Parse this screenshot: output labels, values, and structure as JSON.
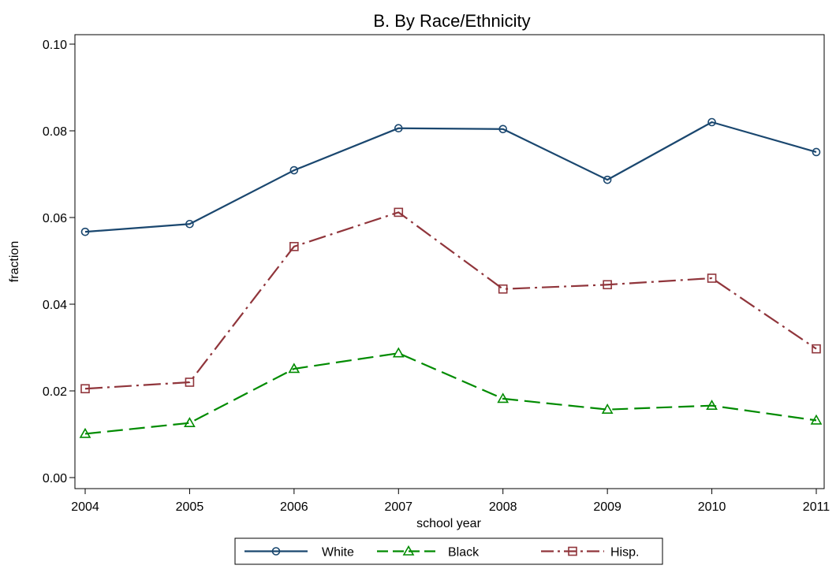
{
  "chart_data": {
    "type": "line",
    "title": "B. By Race/Ethnicity",
    "xlabel": "school year",
    "ylabel": "fraction",
    "x": [
      2004,
      2005,
      2006,
      2007,
      2008,
      2009,
      2010,
      2011
    ],
    "xticks": [
      "2004",
      "2005",
      "2006",
      "2007",
      "2008",
      "2009",
      "2010",
      "2011"
    ],
    "ylim": [
      0,
      0.1
    ],
    "yticks": [
      "0.00",
      "0.02",
      "0.04",
      "0.06",
      "0.08",
      "0.10"
    ],
    "ytick_values": [
      0,
      0.02,
      0.04,
      0.06,
      0.08,
      0.1
    ],
    "grid": false,
    "legend_position": "bottom",
    "series": [
      {
        "name": "White",
        "color": "#1a476f",
        "marker": "circle",
        "dash": "solid",
        "values": [
          0.0567,
          0.0585,
          0.0709,
          0.0806,
          0.0804,
          0.0687,
          0.082,
          0.0751
        ]
      },
      {
        "name": "Black",
        "color": "#008b00",
        "marker": "triangle",
        "dash": "long-dash",
        "values": [
          0.0101,
          0.0126,
          0.0251,
          0.0287,
          0.0182,
          0.0157,
          0.0166,
          0.0132
        ]
      },
      {
        "name": "Hisp.",
        "color": "#90353b",
        "marker": "square",
        "dash": "dash-dot",
        "values": [
          0.0205,
          0.022,
          0.0533,
          0.0612,
          0.0435,
          0.0445,
          0.046,
          0.0297
        ]
      }
    ]
  }
}
